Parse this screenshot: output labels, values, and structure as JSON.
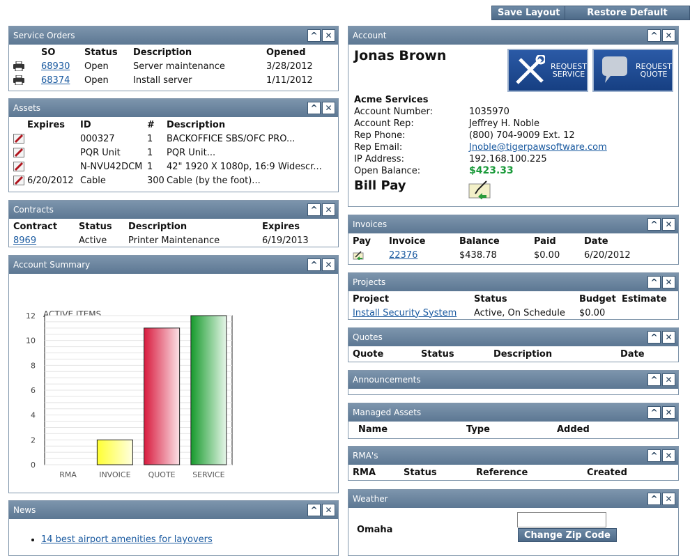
{
  "toolbar": {
    "save_layout": "Save Layout",
    "restore_layout": "Restore Default Layout"
  },
  "controls": {
    "minimize": "^",
    "close": "✕"
  },
  "service_orders": {
    "title": "Service Orders",
    "headers": [
      "SO",
      "Status",
      "Description",
      "Opened"
    ],
    "rows": [
      {
        "so": "68930",
        "status": "Open",
        "description": "Server maintenance",
        "opened": "3/28/2012"
      },
      {
        "so": "68374",
        "status": "Open",
        "description": "Install server",
        "opened": "1/11/2012"
      }
    ]
  },
  "assets": {
    "title": "Assets",
    "headers": [
      "Expires",
      "ID",
      "#",
      "Description"
    ],
    "rows": [
      {
        "expires": "",
        "id": "000327",
        "qty": "1",
        "description": "BACKOFFICE SBS/OFC PRO..."
      },
      {
        "expires": "",
        "id": "PQR Unit",
        "qty": "1",
        "description": "PQR Unit..."
      },
      {
        "expires": "",
        "id": "N-NVU42DCM",
        "qty": "1",
        "description": "42\" 1920 X 1080p, 16:9 Widescr..."
      },
      {
        "expires": "6/20/2012",
        "id": "Cable",
        "qty": "300",
        "description": "Cable (by the foot)..."
      }
    ]
  },
  "contracts": {
    "title": "Contracts",
    "headers": [
      "Contract",
      "Status",
      "Description",
      "Expires"
    ],
    "rows": [
      {
        "contract": "8969",
        "status": "Active",
        "description": "Printer Maintenance",
        "expires": "6/19/2013"
      }
    ]
  },
  "account_summary": {
    "title": "Account Summary",
    "chart_data": {
      "type": "bar",
      "title": "ACTIVE ITEMS",
      "categories": [
        "RMA",
        "INVOICE",
        "QUOTE",
        "SERVICE"
      ],
      "values": [
        0,
        2,
        11,
        12
      ],
      "colors": [
        "#cccccc",
        "#ffff33",
        "#e02040",
        "#20a030"
      ],
      "ylim": [
        0,
        12
      ],
      "yticks": [
        0,
        2,
        4,
        6,
        8,
        10,
        12
      ],
      "xlabel": "",
      "ylabel": ""
    }
  },
  "news": {
    "title": "News",
    "items": [
      "14 best airport amenities for layovers"
    ]
  },
  "account": {
    "title": "Account",
    "name": "Jonas Brown",
    "request_service": [
      "REQUEST",
      "SERVICE"
    ],
    "request_quote": [
      "REQUEST",
      "QUOTE"
    ],
    "company": "Acme Services",
    "fields": [
      {
        "label": "Account Number:",
        "value": "1035970"
      },
      {
        "label": "Account Rep:",
        "value": "Jeffrey H. Noble"
      },
      {
        "label": "Rep Phone:",
        "value": "(800) 704-9009 Ext. 12"
      },
      {
        "label": "Rep Email:",
        "value": "Jnoble@tigerpawsoftware.com"
      },
      {
        "label": "IP Address:",
        "value": "192.168.100.225"
      },
      {
        "label": "Open Balance:",
        "value": "$423.33"
      }
    ],
    "bill_pay": "Bill Pay"
  },
  "invoices": {
    "title": "Invoices",
    "headers": [
      "Pay",
      "Invoice",
      "Balance",
      "Paid",
      "Date"
    ],
    "rows": [
      {
        "invoice": "22376",
        "balance": "$438.78",
        "paid": "$0.00",
        "date": "6/20/2012"
      }
    ]
  },
  "projects": {
    "title": "Projects",
    "headers": [
      "Project",
      "Status",
      "Budget",
      "Estimate"
    ],
    "rows": [
      {
        "project": "Install Security System",
        "status": "Active, On Schedule",
        "budget": "$0.00",
        "estimate": ""
      }
    ]
  },
  "quotes": {
    "title": "Quotes",
    "headers": [
      "Quote",
      "Status",
      "Description",
      "Date"
    ]
  },
  "announcements": {
    "title": "Announcements"
  },
  "managed_assets": {
    "title": "Managed Assets",
    "headers": [
      "Name",
      "Type",
      "Added"
    ]
  },
  "rmas": {
    "title": "RMA's",
    "headers": [
      "RMA",
      "Status",
      "Reference",
      "Created"
    ]
  },
  "weather": {
    "title": "Weather",
    "city": "Omaha",
    "zip_value": "",
    "change_zip": "Change Zip Code"
  },
  "colors": {
    "header_top": "#7d95ad",
    "header_bottom": "#5c7793",
    "link": "#1a5aa0",
    "balance_green": "#1a9a3a"
  }
}
